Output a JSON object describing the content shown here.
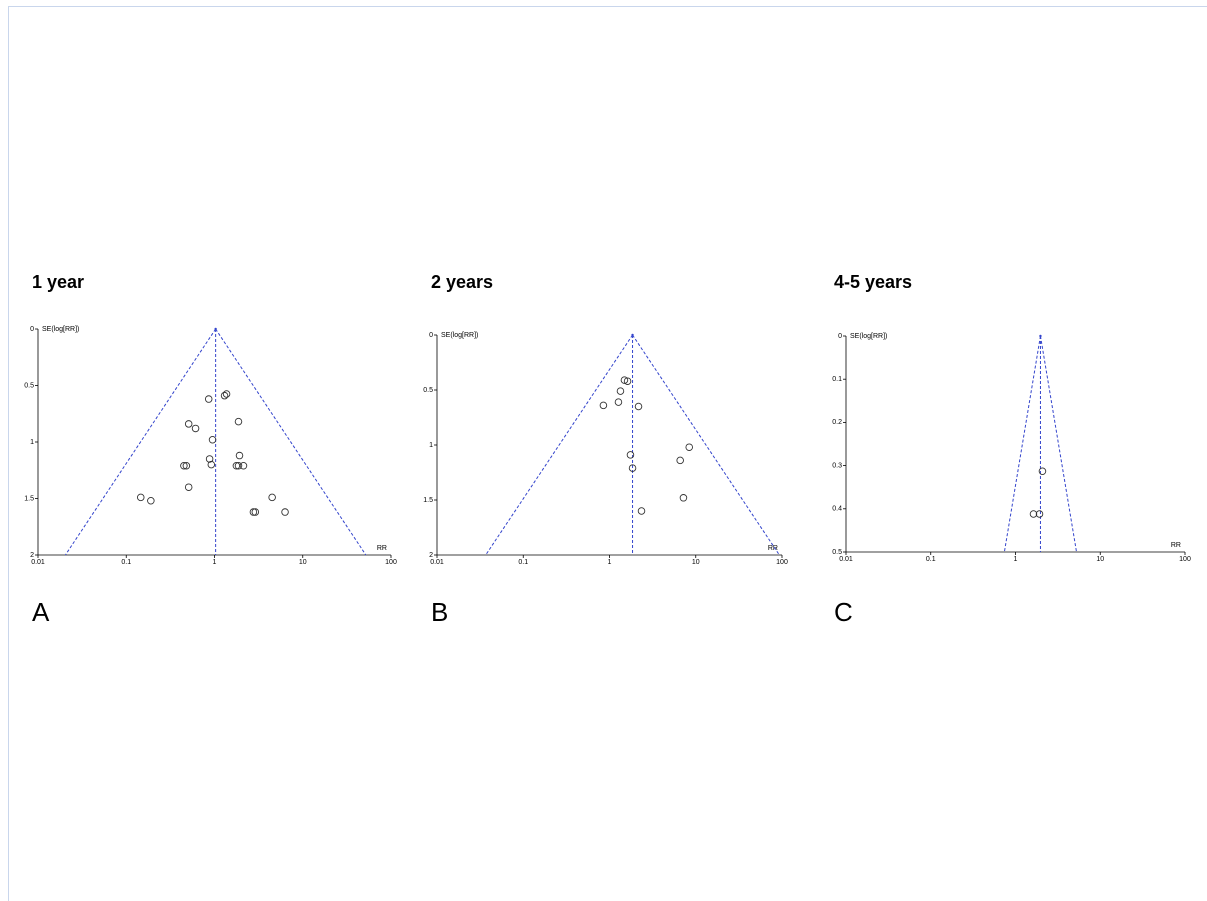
{
  "chart_data": [
    {
      "type": "funnel",
      "title": "1 year",
      "panel_label": "A",
      "ylabel": "SE(log[RR])",
      "xlabel": "RR",
      "x": [
        1.37,
        1.3,
        0.86,
        0.51,
        0.61,
        1.87,
        0.95,
        1.92,
        0.88,
        0.92,
        0.45,
        0.48,
        1.77,
        1.87,
        2.13,
        0.51,
        0.146,
        0.19,
        4.5,
        2.76,
        2.9,
        6.3
      ],
      "values": [
        0.575,
        0.59,
        0.62,
        0.84,
        0.88,
        0.82,
        0.98,
        1.12,
        1.15,
        1.2,
        1.21,
        1.21,
        1.21,
        1.21,
        1.21,
        1.4,
        1.49,
        1.52,
        1.49,
        1.62,
        1.62,
        1.62
      ],
      "pooled": 1.03,
      "xlim": [
        0.01,
        100
      ],
      "ylim": [
        0,
        2
      ],
      "xticks": [
        0.01,
        0.1,
        1,
        10,
        100
      ],
      "yticks": [
        0,
        0.5,
        1,
        1.5,
        2
      ],
      "log_x": true,
      "y_inverted": true,
      "color": "#333333",
      "line_color": "#3344cc"
    },
    {
      "type": "funnel",
      "title": "2 years",
      "panel_label": "B",
      "ylabel": "SE(log[RR])",
      "xlabel": "RR",
      "x": [
        1.49,
        1.62,
        1.34,
        0.85,
        1.27,
        2.17,
        8.4,
        1.75,
        6.6,
        1.85,
        7.2,
        2.35
      ],
      "values": [
        0.41,
        0.42,
        0.51,
        0.64,
        0.61,
        0.65,
        1.02,
        1.09,
        1.14,
        1.21,
        1.48,
        1.6
      ],
      "pooled": 1.85,
      "xlim": [
        0.01,
        100
      ],
      "ylim": [
        0,
        2
      ],
      "xticks": [
        0.01,
        0.1,
        1,
        10,
        100
      ],
      "yticks": [
        0,
        0.5,
        1,
        1.5,
        2
      ],
      "log_x": true,
      "y_inverted": true,
      "color": "#333333",
      "line_color": "#3344cc"
    },
    {
      "type": "funnel",
      "title": "4-5 years",
      "panel_label": "C",
      "ylabel": "SE(log[RR])",
      "xlabel": "RR",
      "x": [
        2.08,
        1.63,
        1.92
      ],
      "values": [
        0.313,
        0.412,
        0.412
      ],
      "pooled": 1.97,
      "xlim": [
        0.01,
        100
      ],
      "ylim": [
        0,
        0.5
      ],
      "xticks": [
        0.01,
        0.1,
        1,
        10,
        100
      ],
      "yticks": [
        0,
        0.1,
        0.2,
        0.3,
        0.4,
        0.5
      ],
      "log_x": true,
      "y_inverted": true,
      "color": "#333333",
      "line_color": "#3344cc"
    }
  ]
}
